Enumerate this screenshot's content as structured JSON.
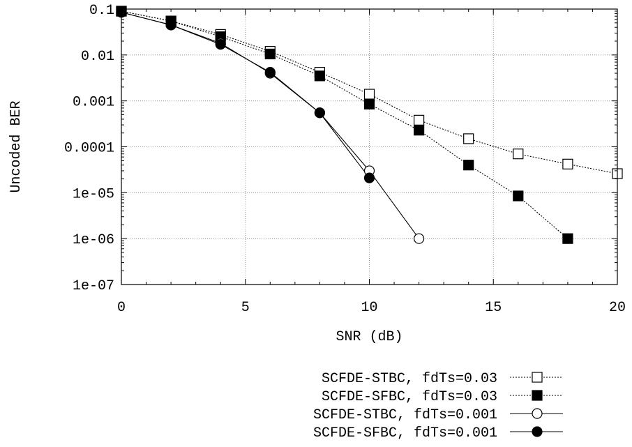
{
  "chart_data": {
    "type": "line",
    "title": "",
    "xlabel": "SNR (dB)",
    "ylabel": "Uncoded BER",
    "xlim": [
      0,
      20
    ],
    "ylim": [
      1e-07,
      0.1
    ],
    "yscale": "log",
    "grid": true,
    "legend_position": "bottom-right, below the plot",
    "x_ticks": [
      0,
      5,
      10,
      15,
      20
    ],
    "x_tick_labels": [
      "0",
      "5",
      "10",
      "15",
      "20"
    ],
    "y_ticks": [
      0.1,
      0.01,
      0.001,
      0.0001,
      1e-05,
      1e-06,
      1e-07
    ],
    "y_tick_labels": [
      "0.1",
      "0.01",
      "0.001",
      "0.0001",
      "1e-05",
      "1e-06",
      "1e-07"
    ],
    "series": [
      {
        "name": "SCFDE-STBC, fdTs=0.03",
        "line_style": "dotted",
        "marker": "open-square",
        "x": [
          0,
          2,
          4,
          6,
          8,
          10,
          12,
          14,
          16,
          18,
          20
        ],
        "y": [
          0.09,
          0.055,
          0.028,
          0.012,
          0.0042,
          0.0014,
          0.00038,
          0.00015,
          7e-05,
          4.2e-05,
          2.6e-05
        ]
      },
      {
        "name": "SCFDE-SFBC, fdTs=0.03",
        "line_style": "dotted",
        "marker": "filled-square",
        "x": [
          0,
          2,
          4,
          6,
          8,
          10,
          12,
          14,
          16,
          18
        ],
        "y": [
          0.09,
          0.055,
          0.025,
          0.0105,
          0.0035,
          0.00085,
          0.00023,
          4e-05,
          8.5e-06,
          1e-06
        ]
      },
      {
        "name": "SCFDE-STBC, fdTs=0.001",
        "line_style": "solid",
        "marker": "open-circle",
        "x": [
          0,
          2,
          4,
          6,
          8,
          10,
          12
        ],
        "y": [
          0.085,
          0.045,
          0.018,
          0.004,
          0.00055,
          3e-05,
          1e-06
        ]
      },
      {
        "name": "SCFDE-SFBC, fdTs=0.001",
        "line_style": "solid",
        "marker": "filled-circle",
        "x": [
          0,
          2,
          4,
          6,
          8,
          10
        ],
        "y": [
          0.085,
          0.045,
          0.017,
          0.0042,
          0.00055,
          2.1e-05
        ]
      }
    ]
  }
}
